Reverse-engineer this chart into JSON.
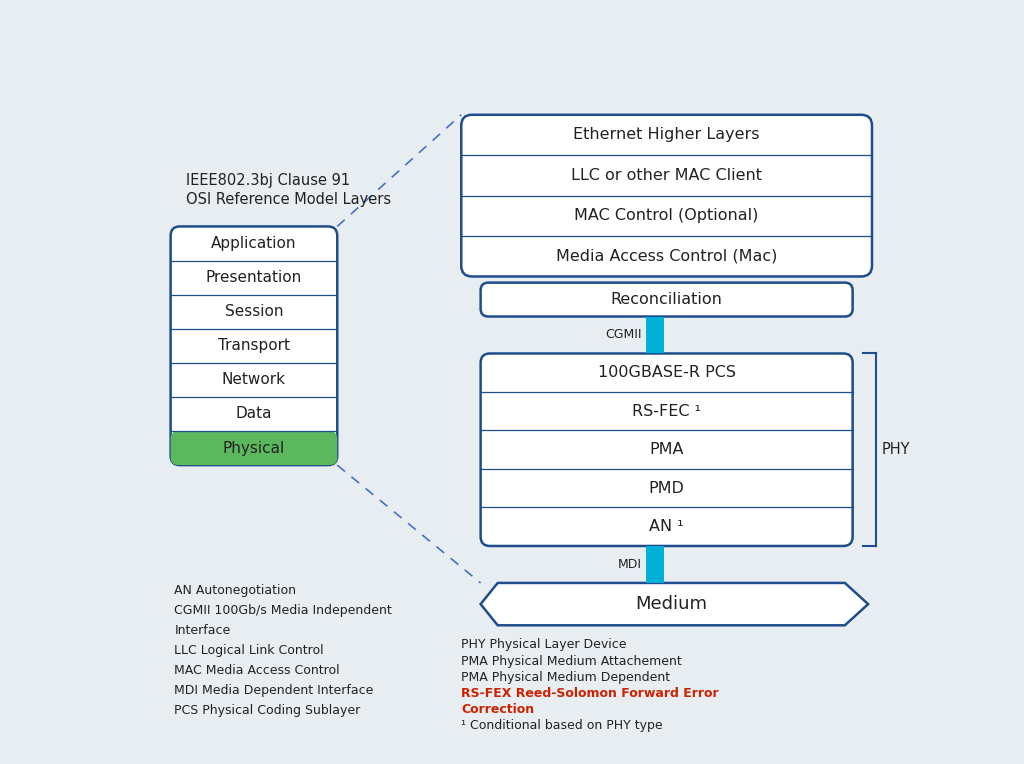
{
  "bg_color": "#e8edf2",
  "title_text": "IEEE802.3bj Clause 91\nOSI Reference Model Layers",
  "osi_layers": [
    "Application",
    "Presentation",
    "Session",
    "Transport",
    "Network",
    "Data",
    "Physical"
  ],
  "physical_fill": "#5cb85c",
  "mac_layers": [
    "Ethernet Higher Layers",
    "LLC or other MAC Client",
    "MAC Control (Optional)",
    "Media Access Control (Mac)"
  ],
  "reconciliation_label": "Reconciliation",
  "cgmii_label": "CGMII",
  "phy_layers": [
    "100GBASE-R PCS",
    "RS-FEC ¹",
    "PMA",
    "PMD",
    "AN ¹"
  ],
  "phy_label": "PHY",
  "mdi_label": "MDI",
  "medium_label": "Medium",
  "connector_color": "#00b0d8",
  "box_border_color": "#1e4d8c",
  "box_fill": "white",
  "footnote_left": "AN Autonegotiation\nCGMII 100Gb/s Media Independent\nInterface\nLLC Logical Link Control\nMAC Media Access Control\nMDI Media Dependent Interface\nPCS Physical Coding Sublayer",
  "footnote_right_lines": [
    {
      "text": "PHY Physical Layer Device",
      "bold": false,
      "color": "#222222"
    },
    {
      "text": "PMA Physical Medium Attachement",
      "bold": false,
      "color": "#222222"
    },
    {
      "text": "PMA Physical Medium Dependent",
      "bold": false,
      "color": "#222222"
    },
    {
      "text": "RS-FEX Reed-Solomon Forward Error",
      "bold": true,
      "color": "#cc2200"
    },
    {
      "text": "Correction",
      "bold": true,
      "color": "#cc2200"
    },
    {
      "text": "¹ Conditional based on PHY type",
      "bold": false,
      "color": "#222222"
    }
  ],
  "text_color": "#222222",
  "dashed_line_color": "#4472c4"
}
